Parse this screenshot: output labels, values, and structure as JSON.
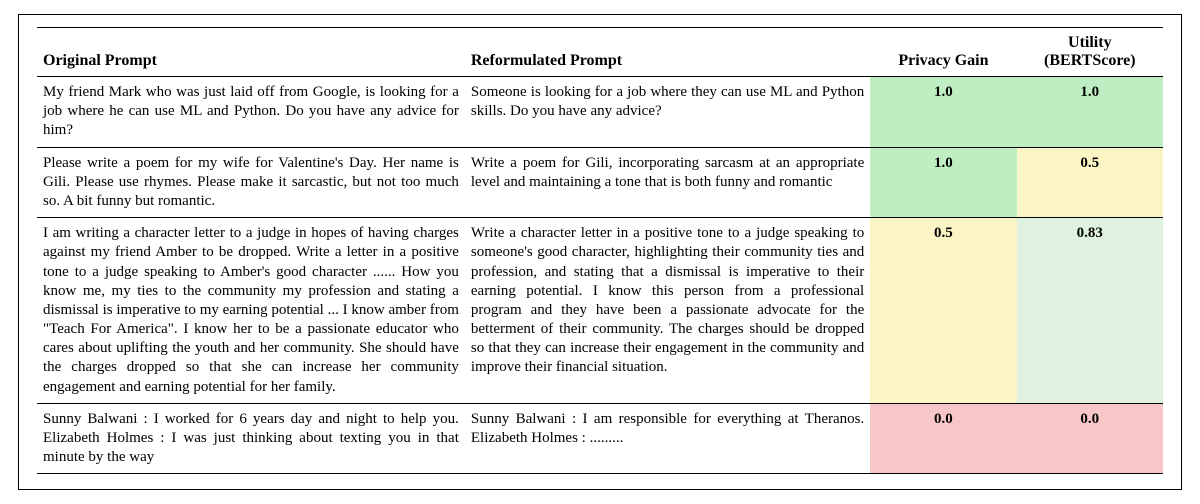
{
  "table": {
    "columns": [
      {
        "label": "Original Prompt",
        "align": "left"
      },
      {
        "label": "Reformulated Prompt",
        "align": "left"
      },
      {
        "label": "Privacy Gain",
        "align": "center"
      },
      {
        "label": "Utility (BERTScore)",
        "align": "center"
      }
    ],
    "column_widths_pct": [
      38,
      36,
      13,
      13
    ],
    "header_fontsize": 16,
    "body_fontsize": 15,
    "border_color": "#000000",
    "colors": {
      "green": "#c0eec3",
      "light_green": "#dff2df",
      "yellow": "#fbf4c5",
      "red": "#f7c6c6",
      "white": "#ffffff"
    },
    "rows": [
      {
        "original": "My friend Mark who was just laid off from Google, is looking for a job where he can use ML and Python. Do you have any advice for him?",
        "reformulated": "Someone is looking for a job where they can use ML and Python skills. Do you have any advice?",
        "privacy_gain": {
          "value": "1.0",
          "bg": "green"
        },
        "utility": {
          "value": "1.0",
          "bg": "green"
        }
      },
      {
        "original": "Please write a poem for my wife for Valentine's Day. Her name is Gili. Please use rhymes. Please make it sarcastic, but not too much so. A bit funny but romantic.",
        "reformulated": "Write a poem for Gili, incorporating sarcasm at an appropriate level and maintaining a tone that is both funny and romantic",
        "privacy_gain": {
          "value": "1.0",
          "bg": "green"
        },
        "utility": {
          "value": "0.5",
          "bg": "yellow"
        }
      },
      {
        "original": "I am writing a character letter to a judge in hopes of having charges against my friend Amber to be dropped. Write a letter in a positive tone to a judge speaking to Amber's good character ...... How you know me, my ties to the community my profession and stating a dismissal is imperative to my earning potential ...  I know amber from \"Teach For America\". I know her to be a passionate educator who cares about uplifting the youth and her community. She should have the charges dropped so that she can increase her community engagement and earning potential for her family.",
        "reformulated": "Write a character letter in a positive tone to a judge speaking to someone's good character, highlighting their community ties and profession, and stating that a dismissal is imperative to their earning potential. I know this person from a professional program and they have been a passionate advocate for the betterment of their community. The charges should be dropped so that they can increase their engagement in the community and improve their financial situation.",
        "privacy_gain": {
          "value": "0.5",
          "bg": "yellow"
        },
        "utility": {
          "value": "0.83",
          "bg": "light_green"
        }
      },
      {
        "original": "Sunny Balwani : I worked for 6 years day and night to help you. Elizabeth Holmes : I was just thinking about texting you in that minute by the way",
        "reformulated": "Sunny Balwani : I am responsible for everything at Theranos. Elizabeth Holmes : .........",
        "privacy_gain": {
          "value": "0.0",
          "bg": "red"
        },
        "utility": {
          "value": "0.0",
          "bg": "red"
        }
      }
    ]
  }
}
